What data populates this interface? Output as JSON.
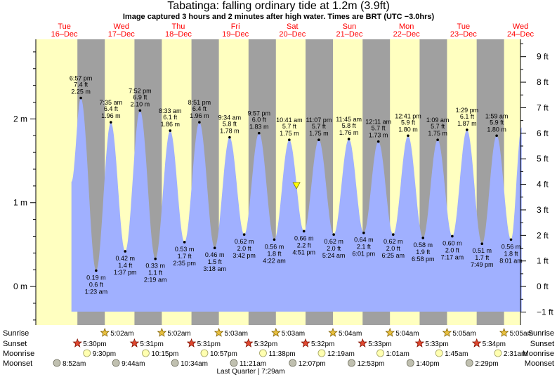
{
  "title": "Tabatinga: falling  ordinary tide at 1.2m (3.9ft)",
  "subtitle": "Image captured 3 hours and 2 minutes after high water. Times are BRT (UTC −3.0hrs)",
  "colors": {
    "day": "#ffffc0",
    "night": "#a0a0a0",
    "tide": "#a0b0ff",
    "date_text": "#ff0000",
    "marker": "#ffff00"
  },
  "chart_data": {
    "type": "area",
    "title": "Tabatinga: falling  ordinary tide at 1.2m (3.9ft)",
    "days": [
      {
        "dow": "Tue",
        "date": "16–Dec"
      },
      {
        "dow": "Wed",
        "date": "17–Dec"
      },
      {
        "dow": "Thu",
        "date": "18–Dec"
      },
      {
        "dow": "Fri",
        "date": "19–Dec"
      },
      {
        "dow": "Sat",
        "date": "20–Dec"
      },
      {
        "dow": "Sun",
        "date": "21–Dec"
      },
      {
        "dow": "Mon",
        "date": "22–Dec"
      },
      {
        "dow": "Tue",
        "date": "23–Dec"
      },
      {
        "dow": "Wed",
        "date": "24–Dec"
      }
    ],
    "x_range_days": [
      16,
      24.5
    ],
    "y_left": {
      "unit": "m",
      "ticks": [
        {
          "value": 0,
          "label": "0 m"
        },
        {
          "value": 1,
          "label": "1 m"
        },
        {
          "value": 2,
          "label": "2 m"
        }
      ],
      "range_m": [
        -0.46,
        2.95
      ]
    },
    "y_right": {
      "unit": "ft",
      "ticks": [
        {
          "value": -1,
          "label": "−1 ft"
        },
        {
          "value": 0,
          "label": "0 ft"
        },
        {
          "value": 1,
          "label": "1 ft"
        },
        {
          "value": 2,
          "label": "2 ft"
        },
        {
          "value": 3,
          "label": "3 ft"
        },
        {
          "value": 4,
          "label": "4 ft"
        },
        {
          "value": 5,
          "label": "5 ft"
        },
        {
          "value": 6,
          "label": "6 ft"
        },
        {
          "value": 7,
          "label": "7 ft"
        },
        {
          "value": 8,
          "label": "8 ft"
        },
        {
          "value": 9,
          "label": "9 ft"
        }
      ]
    },
    "night_periods": [
      {
        "start": "16–Dec 17:30",
        "end": "17–Dec 05:02"
      },
      {
        "start": "17–Dec 17:31",
        "end": "18–Dec 05:02"
      },
      {
        "start": "18–Dec 17:31",
        "end": "19–Dec 05:03"
      },
      {
        "start": "19–Dec 17:32",
        "end": "20–Dec 05:03"
      },
      {
        "start": "20–Dec 17:32",
        "end": "21–Dec 05:04"
      },
      {
        "start": "21–Dec 17:33",
        "end": "22–Dec 05:04"
      },
      {
        "start": "22–Dec 17:33",
        "end": "23–Dec 05:05"
      },
      {
        "start": "23–Dec 17:34",
        "end": "24–Dec 05:05"
      }
    ],
    "series": [
      {
        "points": [
          {
            "day": 16,
            "t": "18:57",
            "time": "6:57 pm",
            "m": 2.25,
            "ft": "7.4 ft",
            "mlabel": "2.25 m",
            "type": "high"
          },
          {
            "day": 17,
            "t": "01:23",
            "time": "1:23 am",
            "m": 0.19,
            "ft": "0.6 ft",
            "mlabel": "0.19 m",
            "type": "low"
          },
          {
            "day": 17,
            "t": "07:35",
            "time": "7:35 am",
            "m": 1.96,
            "ft": "6.4 ft",
            "mlabel": "1.96 m",
            "type": "high"
          },
          {
            "day": 17,
            "t": "13:37",
            "time": "1:37 pm",
            "m": 0.42,
            "ft": "1.4 ft",
            "mlabel": "0.42 m",
            "type": "low"
          },
          {
            "day": 17,
            "t": "19:52",
            "time": "7:52 pm",
            "m": 2.1,
            "ft": "6.9 ft",
            "mlabel": "2.10 m",
            "type": "high"
          },
          {
            "day": 18,
            "t": "02:19",
            "time": "2:19 am",
            "m": 0.33,
            "ft": "1.1 ft",
            "mlabel": "0.33 m",
            "type": "low"
          },
          {
            "day": 18,
            "t": "08:33",
            "time": "8:33 am",
            "m": 1.86,
            "ft": "6.1 ft",
            "mlabel": "1.86 m",
            "type": "high"
          },
          {
            "day": 18,
            "t": "14:35",
            "time": "2:35 pm",
            "m": 0.53,
            "ft": "1.7 ft",
            "mlabel": "0.53 m",
            "type": "low"
          },
          {
            "day": 18,
            "t": "20:51",
            "time": "8:51 pm",
            "m": 1.96,
            "ft": "6.4 ft",
            "mlabel": "1.96 m",
            "type": "high"
          },
          {
            "day": 19,
            "t": "03:18",
            "time": "3:18 am",
            "m": 0.46,
            "ft": "1.5 ft",
            "mlabel": "0.46 m",
            "type": "low"
          },
          {
            "day": 19,
            "t": "09:34",
            "time": "9:34 am",
            "m": 1.78,
            "ft": "5.8 ft",
            "mlabel": "1.78 m",
            "type": "high"
          },
          {
            "day": 19,
            "t": "15:42",
            "time": "3:42 pm",
            "m": 0.62,
            "ft": "2.0 ft",
            "mlabel": "0.62 m",
            "type": "low"
          },
          {
            "day": 19,
            "t": "21:57",
            "time": "9:57 pm",
            "m": 1.83,
            "ft": "6.0 ft",
            "mlabel": "1.83 m",
            "type": "high"
          },
          {
            "day": 20,
            "t": "04:22",
            "time": "4:22 am",
            "m": 0.56,
            "ft": "1.8 ft",
            "mlabel": "0.56 m",
            "type": "low"
          },
          {
            "day": 20,
            "t": "10:41",
            "time": "10:41 am",
            "m": 1.75,
            "ft": "5.7 ft",
            "mlabel": "1.75 m",
            "type": "high"
          },
          {
            "day": 20,
            "t": "16:51",
            "time": "4:51 pm",
            "m": 0.66,
            "ft": "2.2 ft",
            "mlabel": "0.66 m",
            "type": "low"
          },
          {
            "day": 20,
            "t": "23:07",
            "time": "11:07 pm",
            "m": 1.75,
            "ft": "5.7 ft",
            "mlabel": "1.75 m",
            "type": "high"
          },
          {
            "day": 21,
            "t": "05:24",
            "time": "5:24 am",
            "m": 0.62,
            "ft": "2.0 ft",
            "mlabel": "0.62 m",
            "type": "low"
          },
          {
            "day": 21,
            "t": "11:45",
            "time": "11:45 am",
            "m": 1.76,
            "ft": "5.8 ft",
            "mlabel": "1.76 m",
            "type": "high"
          },
          {
            "day": 21,
            "t": "18:01",
            "time": "6:01 pm",
            "m": 0.64,
            "ft": "2.1 ft",
            "mlabel": "0.64 m",
            "type": "low"
          },
          {
            "day": 22,
            "t": "00:11",
            "time": "12:11 am",
            "m": 1.73,
            "ft": "5.7 ft",
            "mlabel": "1.73 m",
            "type": "high"
          },
          {
            "day": 22,
            "t": "06:25",
            "time": "6:25 am",
            "m": 0.62,
            "ft": "2.0 ft",
            "mlabel": "0.62 m",
            "type": "low"
          },
          {
            "day": 22,
            "t": "12:41",
            "time": "12:41 pm",
            "m": 1.8,
            "ft": "5.9 ft",
            "mlabel": "1.80 m",
            "type": "high"
          },
          {
            "day": 22,
            "t": "18:58",
            "time": "6:58 pm",
            "m": 0.58,
            "ft": "1.9 ft",
            "mlabel": "0.58 m",
            "type": "low"
          },
          {
            "day": 23,
            "t": "01:09",
            "time": "1:09 am",
            "m": 1.75,
            "ft": "5.7 ft",
            "mlabel": "1.75 m",
            "type": "high"
          },
          {
            "day": 23,
            "t": "07:17",
            "time": "7:17 am",
            "m": 0.6,
            "ft": "2.0 ft",
            "mlabel": "0.60 m",
            "type": "low"
          },
          {
            "day": 23,
            "t": "13:29",
            "time": "1:29 pm",
            "m": 1.87,
            "ft": "6.1 ft",
            "mlabel": "1.87 m",
            "type": "high"
          },
          {
            "day": 23,
            "t": "19:49",
            "time": "7:49 pm",
            "m": 0.51,
            "ft": "1.7 ft",
            "mlabel": "0.51 m",
            "type": "low"
          },
          {
            "day": 24,
            "t": "01:59",
            "time": "1:59 am",
            "m": 1.8,
            "ft": "5.9 ft",
            "mlabel": "1.80 m",
            "type": "high"
          },
          {
            "day": 24,
            "t": "08:01",
            "time": "8:01 am",
            "m": 0.56,
            "ft": "1.8 ft",
            "mlabel": "0.56 m",
            "type": "low"
          }
        ]
      }
    ],
    "current": {
      "day": 20,
      "t": "13:43",
      "m": 1.2
    },
    "curve_start": {
      "day": 16,
      "t": "15:00",
      "m": 1.25
    },
    "curve_end": {
      "day": 24,
      "t": "12:30",
      "m": 1.9
    }
  },
  "astro": {
    "labels": {
      "sunrise": "Sunrise",
      "sunset": "Sunset",
      "moonrise": "Moonrise",
      "moonset": "Moonset"
    },
    "sunrise": [
      {
        "day": 17,
        "t": "05:02",
        "text": "5:02am"
      },
      {
        "day": 18,
        "t": "05:02",
        "text": "5:02am"
      },
      {
        "day": 19,
        "t": "05:03",
        "text": "5:03am"
      },
      {
        "day": 20,
        "t": "05:03",
        "text": "5:03am"
      },
      {
        "day": 21,
        "t": "05:04",
        "text": "5:04am"
      },
      {
        "day": 22,
        "t": "05:04",
        "text": "5:04am"
      },
      {
        "day": 23,
        "t": "05:05",
        "text": "5:05am"
      },
      {
        "day": 24,
        "t": "05:05",
        "text": "5:05am"
      }
    ],
    "sunset": [
      {
        "day": 16,
        "t": "17:30",
        "text": "5:30pm"
      },
      {
        "day": 17,
        "t": "17:31",
        "text": "5:31pm"
      },
      {
        "day": 18,
        "t": "17:31",
        "text": "5:31pm"
      },
      {
        "day": 19,
        "t": "17:32",
        "text": "5:32pm"
      },
      {
        "day": 20,
        "t": "17:32",
        "text": "5:32pm"
      },
      {
        "day": 21,
        "t": "17:33",
        "text": "5:33pm"
      },
      {
        "day": 22,
        "t": "17:33",
        "text": "5:33pm"
      },
      {
        "day": 23,
        "t": "17:34",
        "text": "5:34pm"
      }
    ],
    "moonrise": [
      {
        "day": 16,
        "t": "21:30",
        "text": "9:30pm"
      },
      {
        "day": 17,
        "t": "22:15",
        "text": "10:15pm"
      },
      {
        "day": 18,
        "t": "22:57",
        "text": "10:57pm"
      },
      {
        "day": 19,
        "t": "23:38",
        "text": "11:38pm"
      },
      {
        "day": 21,
        "t": "00:19",
        "text": "12:19am"
      },
      {
        "day": 22,
        "t": "01:01",
        "text": "1:01am"
      },
      {
        "day": 23,
        "t": "01:45",
        "text": "1:45am"
      },
      {
        "day": 24,
        "t": "02:31",
        "text": "2:31am"
      }
    ],
    "moonset": [
      {
        "day": 16,
        "t": "08:52",
        "text": "8:52am"
      },
      {
        "day": 17,
        "t": "09:44",
        "text": "9:44am"
      },
      {
        "day": 18,
        "t": "10:34",
        "text": "10:34am"
      },
      {
        "day": 19,
        "t": "11:21",
        "text": "11:21am"
      },
      {
        "day": 20,
        "t": "12:07",
        "text": "12:07pm"
      },
      {
        "day": 21,
        "t": "12:53",
        "text": "12:53pm"
      },
      {
        "day": 22,
        "t": "13:40",
        "text": "1:40pm"
      },
      {
        "day": 23,
        "t": "14:29",
        "text": "2:29pm"
      }
    ],
    "moon_phase": {
      "day": 20,
      "t": "07:29",
      "text": "Last Quarter | 7:29am"
    }
  }
}
